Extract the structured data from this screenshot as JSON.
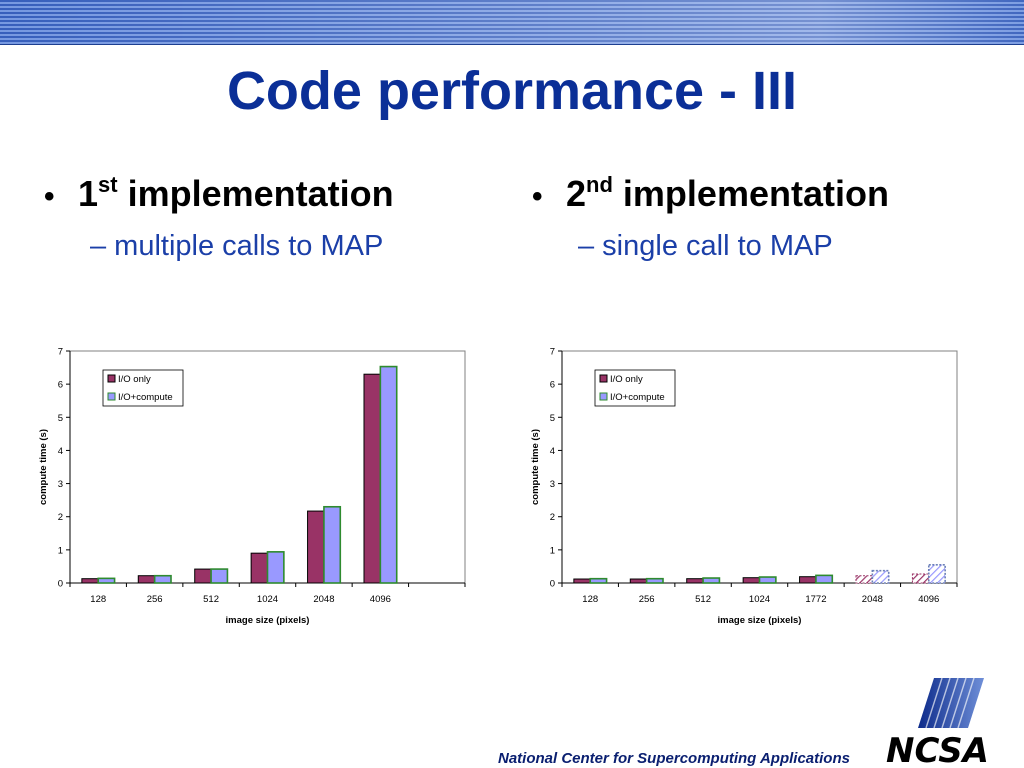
{
  "slide": {
    "title": "Code performance - III",
    "bullet1": {
      "prefix": "1",
      "sup": "st",
      "rest": " implementation",
      "sub": "– multiple calls to MAP"
    },
    "bullet2": {
      "prefix": "2",
      "sup": "nd",
      "rest": " implementation",
      "sub": "– single call to MAP"
    },
    "footer": "National Center for Supercomputing Applications",
    "logo_text": "NCSA"
  },
  "colors": {
    "io_only": "#993366",
    "io_compute": "#9999ff",
    "io_compute_border": "#2e8b2e",
    "title": "#0b2f97"
  },
  "chart_data": [
    {
      "type": "bar",
      "xlabel": "image size (pixels)",
      "ylabel": "compute time (s)",
      "ylim": [
        0,
        7
      ],
      "yticks": [
        0,
        1,
        2,
        3,
        4,
        5,
        6,
        7
      ],
      "categories": [
        "128",
        "256",
        "512",
        "1024",
        "2048",
        "4096",
        ""
      ],
      "series": [
        {
          "name": "I/O only",
          "values": [
            0.13,
            0.22,
            0.42,
            0.9,
            2.17,
            6.3,
            null
          ]
        },
        {
          "name": "I/O+compute",
          "values": [
            0.14,
            0.22,
            0.42,
            0.94,
            2.3,
            6.53,
            null
          ]
        }
      ],
      "legend": "top-left",
      "grid": false
    },
    {
      "type": "bar",
      "xlabel": "image size (pixels)",
      "ylabel": "compute time (s)",
      "ylim": [
        0,
        7
      ],
      "yticks": [
        0,
        1,
        2,
        3,
        4,
        5,
        6,
        7
      ],
      "categories": [
        "128",
        "256",
        "512",
        "1024",
        "1772",
        "2048",
        "4096"
      ],
      "series": [
        {
          "name": "I/O only",
          "values": [
            0.12,
            0.12,
            0.13,
            0.16,
            0.19,
            0.22,
            0.27
          ]
        },
        {
          "name": "I/O+compute",
          "values": [
            0.13,
            0.13,
            0.15,
            0.18,
            0.23,
            0.37,
            0.55
          ]
        }
      ],
      "hatched_categories": [
        "2048",
        "4096"
      ],
      "legend": "top-left",
      "grid": false
    }
  ]
}
